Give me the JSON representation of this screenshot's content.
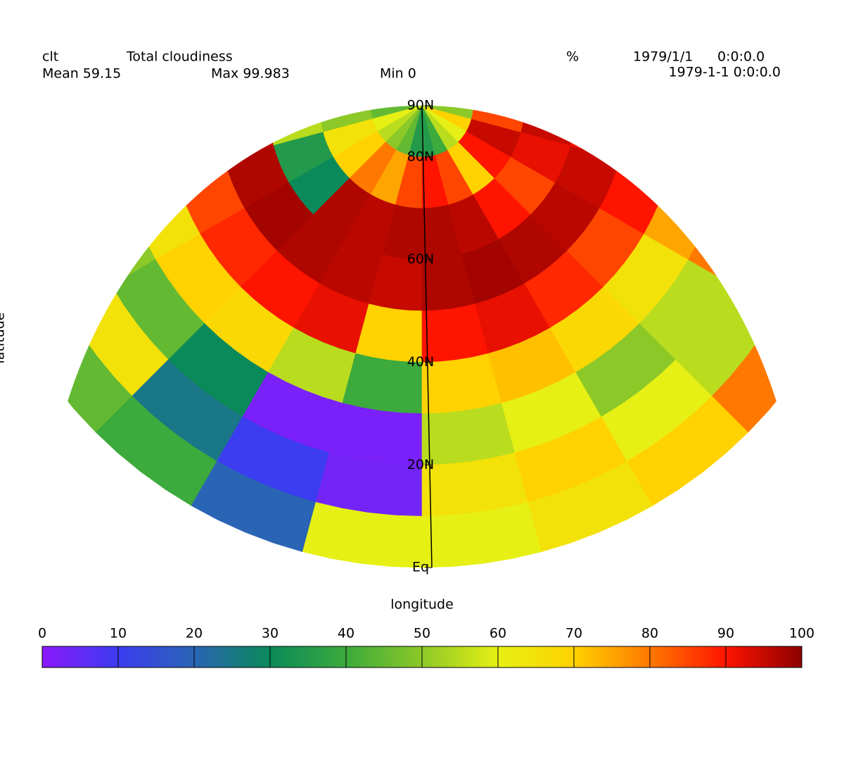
{
  "chart_data": {
    "type": "map",
    "header": {
      "variable": "clt",
      "long_name": "Total cloudiness",
      "units": "%",
      "date": "1979/1/1",
      "time": "0:0:0.0",
      "mean": "Mean 59.15",
      "max": "Max 99.983",
      "min": "Min 0",
      "timestamp": "1979-1-1 0:0:0.0"
    },
    "ylabel": "latitude",
    "xlabel": "longitude",
    "lat_ticks": [
      {
        "value": 90,
        "label": "90N"
      },
      {
        "value": 80,
        "label": "80N"
      },
      {
        "value": 60,
        "label": "60N"
      },
      {
        "value": 40,
        "label": "40N"
      },
      {
        "value": 20,
        "label": "20N"
      },
      {
        "value": 0,
        "label": "Eq"
      }
    ],
    "grid": {
      "values": [
        [
          50,
          45,
          40,
          55,
          60,
          48,
          45,
          60,
          55,
          50,
          45,
          35,
          35,
          40,
          55,
          60,
          70,
          50,
          45,
          55,
          60,
          50,
          55,
          50
        ],
        [
          60,
          65,
          70,
          75,
          60,
          55,
          50,
          65,
          70,
          80,
          75,
          85,
          90,
          85,
          70,
          90,
          95,
          85,
          92,
          90,
          80,
          70,
          65,
          60
        ],
        [
          70,
          75,
          80,
          85,
          90,
          95,
          55,
          35,
          30,
          97,
          96,
          97,
          97,
          96,
          90,
          85,
          92,
          95,
          96,
          90,
          85,
          80,
          75,
          70
        ],
        [
          95,
          96,
          97,
          98,
          97,
          96,
          95,
          97,
          98,
          97,
          96,
          95,
          97,
          98,
          97,
          96,
          95,
          90,
          85,
          92,
          95,
          96,
          97,
          95
        ],
        [
          90,
          88,
          92,
          90,
          85,
          88,
          90,
          85,
          88,
          90,
          92,
          70,
          90,
          92,
          88,
          85,
          90,
          80,
          45,
          90,
          88,
          92,
          95,
          90
        ],
        [
          75,
          70,
          65,
          80,
          75,
          68,
          72,
          65,
          70,
          68,
          55,
          40,
          70,
          72,
          68,
          65,
          75,
          60,
          70,
          55,
          78,
          30,
          10,
          20
        ],
        [
          60,
          55,
          62,
          70,
          65,
          55,
          60,
          50,
          45,
          30,
          2,
          2,
          55,
          60,
          50,
          55,
          80,
          45,
          60,
          70,
          90,
          85,
          20,
          30
        ],
        [
          55,
          60,
          65,
          70,
          62,
          58,
          50,
          55,
          65,
          25,
          10,
          3,
          65,
          70,
          60,
          55,
          68,
          50,
          62,
          75,
          90,
          60,
          45,
          40
        ],
        [
          60,
          55,
          58,
          62,
          60,
          68,
          60,
          55,
          45,
          40,
          20,
          60,
          60,
          65,
          70,
          80,
          62,
          55,
          60,
          70,
          80,
          45,
          60,
          70
        ]
      ]
    },
    "colorbar": {
      "lim": [
        0,
        100
      ],
      "ticks": [
        0,
        10,
        20,
        30,
        40,
        50,
        60,
        70,
        80,
        90,
        100
      ],
      "colors": [
        "#8a19fa",
        "#3c3cf0",
        "#2a64b4",
        "#0a8a5a",
        "#3caa3c",
        "#8cc828",
        "#e6f014",
        "#ffd200",
        "#ff7800",
        "#ff1400",
        "#8c0000"
      ]
    }
  }
}
